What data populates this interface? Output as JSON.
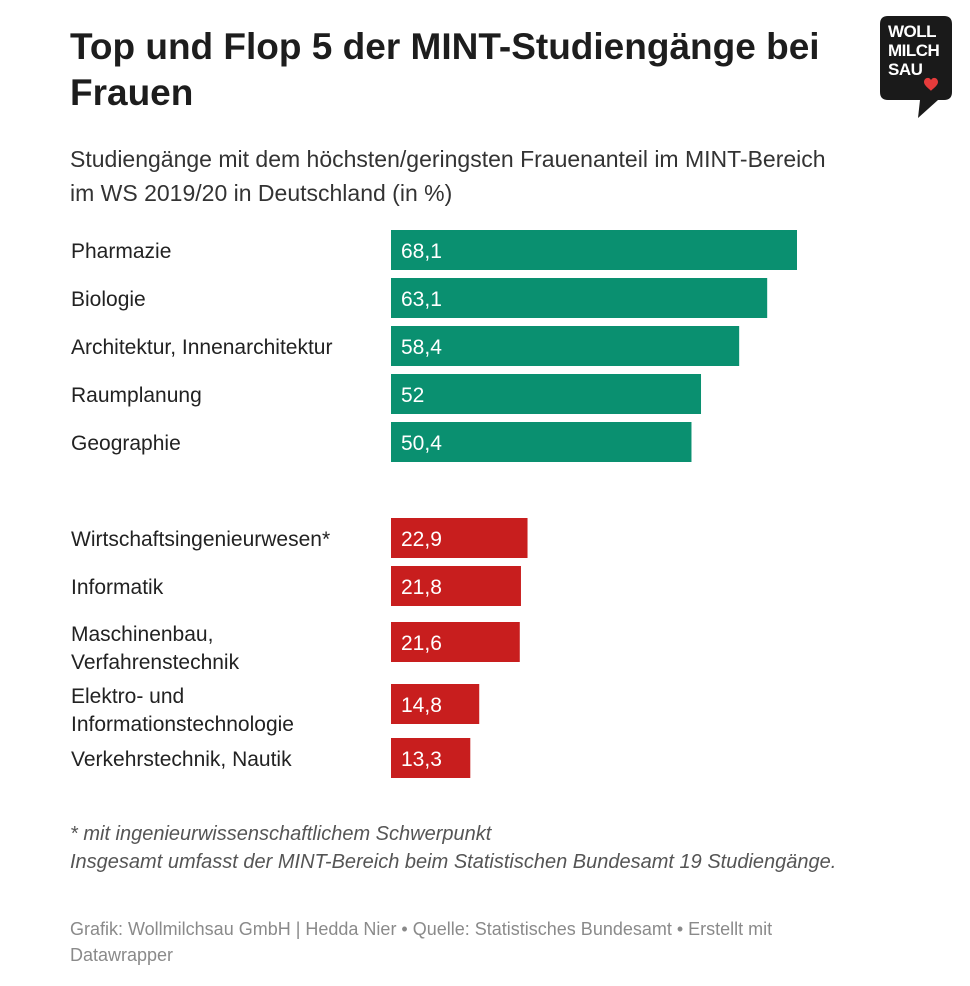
{
  "title": "Top und Flop 5 der MINT-Studiengänge bei Frauen",
  "subtitle": "Studiengänge mit dem höchsten/geringsten Frauenanteil im MINT-Bereich im WS 2019/20 in Deutschland (in %)",
  "logo": {
    "lines": [
      "WOLL",
      "MILCH",
      "SAU"
    ],
    "icon": "heart-icon",
    "background": "#1a1a1a",
    "accent": "#e53b3b"
  },
  "colors": {
    "top": "#0a9070",
    "flop": "#c81e1e"
  },
  "chart_data": {
    "type": "bar",
    "orientation": "horizontal",
    "xlim": [
      0,
      68.1
    ],
    "groups": [
      {
        "color": "#0a9070",
        "categories": [
          "Pharmazie",
          "Biologie",
          "Architektur, Innenarchitektur",
          "Raumplanung",
          "Geographie"
        ],
        "values": [
          68.1,
          63.1,
          58.4,
          52,
          50.4
        ],
        "value_labels": [
          "68,1",
          "63,1",
          "58,4",
          "52",
          "50,4"
        ]
      },
      {
        "color": "#c81e1e",
        "categories": [
          "Wirtschaftsingenieurwesen*",
          "Informatik",
          "Maschinenbau, Verfahrenstechnik",
          "Elektro- und Informationstechnologie",
          "Verkehrstechnik, Nautik"
        ],
        "values": [
          22.9,
          21.8,
          21.6,
          14.8,
          13.3
        ],
        "value_labels": [
          "22,9",
          "21,8",
          "21,6",
          "14,8",
          "13,3"
        ]
      }
    ]
  },
  "notes": [
    "* mit ingenieurwissenschaftlichem Schwerpunkt",
    "Insgesamt umfasst der MINT-Bereich beim Statistischen Bundesamt 19 Studiengänge."
  ],
  "source": "Grafik: Wollmilchsau GmbH | Hedda Nier • Quelle: Statistisches Bundesamt • Erstellt mit Datawrapper"
}
